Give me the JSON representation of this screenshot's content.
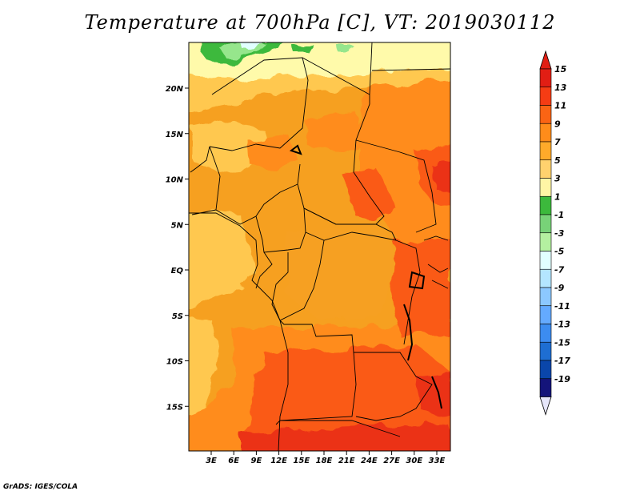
{
  "title": "Temperature at 700hPa [C], VT: 2019030112",
  "credit": "GrADS: IGES/COLA",
  "map": {
    "lat_ticks": [
      "20N",
      "15N",
      "10N",
      "5N",
      "EQ",
      "5S",
      "10S",
      "15S"
    ],
    "lon_ticks": [
      "3E",
      "6E",
      "9E",
      "12E",
      "15E",
      "18E",
      "21E",
      "24E",
      "27E",
      "30E",
      "33E"
    ],
    "fill_colors": {
      "cool_green": "#3cb93c",
      "light_green": "#96e68c",
      "pale_cyan": "#e1ffff",
      "cream": "#fffaaa",
      "light_orange": "#ffc850",
      "orange": "#f6a020",
      "dark_orange": "#ff8c1a",
      "red_orange": "#fa5a14",
      "red": "#eb3214"
    }
  },
  "colorbar": {
    "labels": [
      "15",
      "13",
      "11",
      "9",
      "7",
      "5",
      "3",
      "1",
      "-1",
      "-3",
      "-5",
      "-7",
      "-9",
      "-11",
      "-13",
      "-15",
      "-17",
      "-19"
    ],
    "colors": [
      "#e11e14",
      "#f53c14",
      "#fa6414",
      "#ff8c1a",
      "#ffaa2a",
      "#ffd26e",
      "#fff5a5",
      "#3cb93c",
      "#78d278",
      "#b4f0a0",
      "#e1ffff",
      "#b4e6ff",
      "#8cc8ff",
      "#64aaff",
      "#3c8cf0",
      "#1e6ed2",
      "#0a46aa",
      "#14147a"
    ],
    "under_color": "#e6e6fa",
    "over_color": "#e11e14"
  }
}
